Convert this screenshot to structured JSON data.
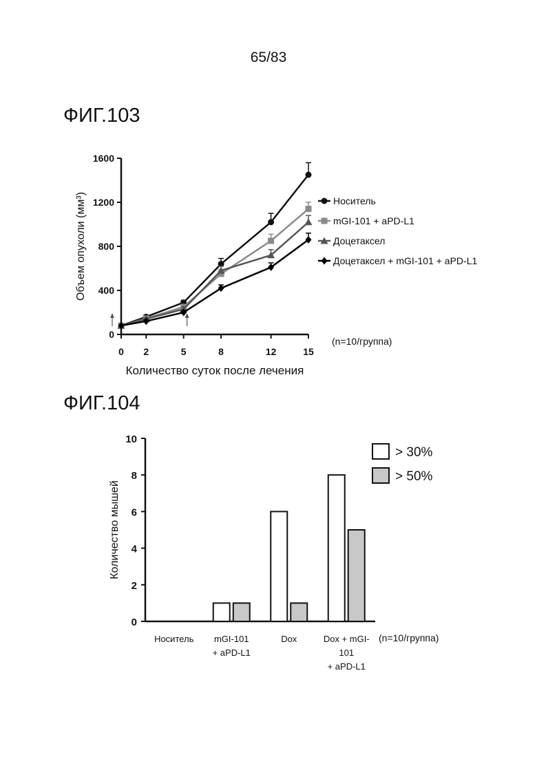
{
  "page_number": "65/83",
  "figures": {
    "fig103_label": "ФИГ.103",
    "fig104_label": "ФИГ.104"
  },
  "chart_data": [
    {
      "type": "line",
      "title": "",
      "xlabel": "Количество суток после лечения",
      "ylabel": "Объем опухоли (мм³)",
      "x": [
        0,
        2,
        5,
        8,
        12,
        15
      ],
      "x_ticks": [
        "0",
        "2",
        "5",
        "8",
        "12",
        "15"
      ],
      "y_ticks": [
        "0",
        "400",
        "800",
        "1200",
        "1600"
      ],
      "ylim": [
        0,
        1600
      ],
      "xlim": [
        0,
        15
      ],
      "annotation": "(n=10/группа)",
      "treatment_arrows_at_x": [
        0,
        5
      ],
      "legend_position": "right",
      "series": [
        {
          "name": "Носитель",
          "marker": "circle",
          "color": "#111111",
          "values": [
            80,
            160,
            290,
            640,
            1020,
            1450
          ],
          "errors": [
            10,
            15,
            20,
            50,
            80,
            110
          ]
        },
        {
          "name": "mGI-101 + aPD-L1",
          "marker": "square",
          "color": "#8a8a8a",
          "values": [
            80,
            145,
            250,
            550,
            850,
            1140
          ],
          "errors": [
            10,
            15,
            20,
            40,
            60,
            60
          ]
        },
        {
          "name": "Доцетаксел",
          "marker": "triangle",
          "color": "#555555",
          "values": [
            80,
            140,
            230,
            580,
            720,
            1020
          ],
          "errors": [
            10,
            12,
            20,
            40,
            50,
            60
          ]
        },
        {
          "name": "Доцетаксел + mGI-101 + aPD-L1",
          "marker": "diamond",
          "color": "#000000",
          "values": [
            80,
            120,
            200,
            420,
            610,
            860
          ],
          "errors": [
            10,
            12,
            15,
            30,
            40,
            60
          ]
        }
      ]
    },
    {
      "type": "bar",
      "title": "",
      "xlabel": "",
      "ylabel": "Количество мышей",
      "categories": [
        [
          "Носитель"
        ],
        [
          "mGI-101",
          "+ aPD-L1"
        ],
        [
          "Dox"
        ],
        [
          "Dox + mGI-",
          "101",
          "+ aPD-L1"
        ]
      ],
      "y_ticks": [
        "0",
        "2",
        "4",
        "6",
        "8",
        "10"
      ],
      "ylim": [
        0,
        10
      ],
      "annotation": "(n=10/группа)",
      "legend_position": "top-right",
      "series": [
        {
          "name": "> 30%",
          "color": "#ffffff",
          "values": [
            0,
            1,
            6,
            8
          ]
        },
        {
          "name": "> 50%",
          "color": "#c8c8c8",
          "values": [
            0,
            1,
            1,
            5
          ]
        }
      ]
    }
  ]
}
